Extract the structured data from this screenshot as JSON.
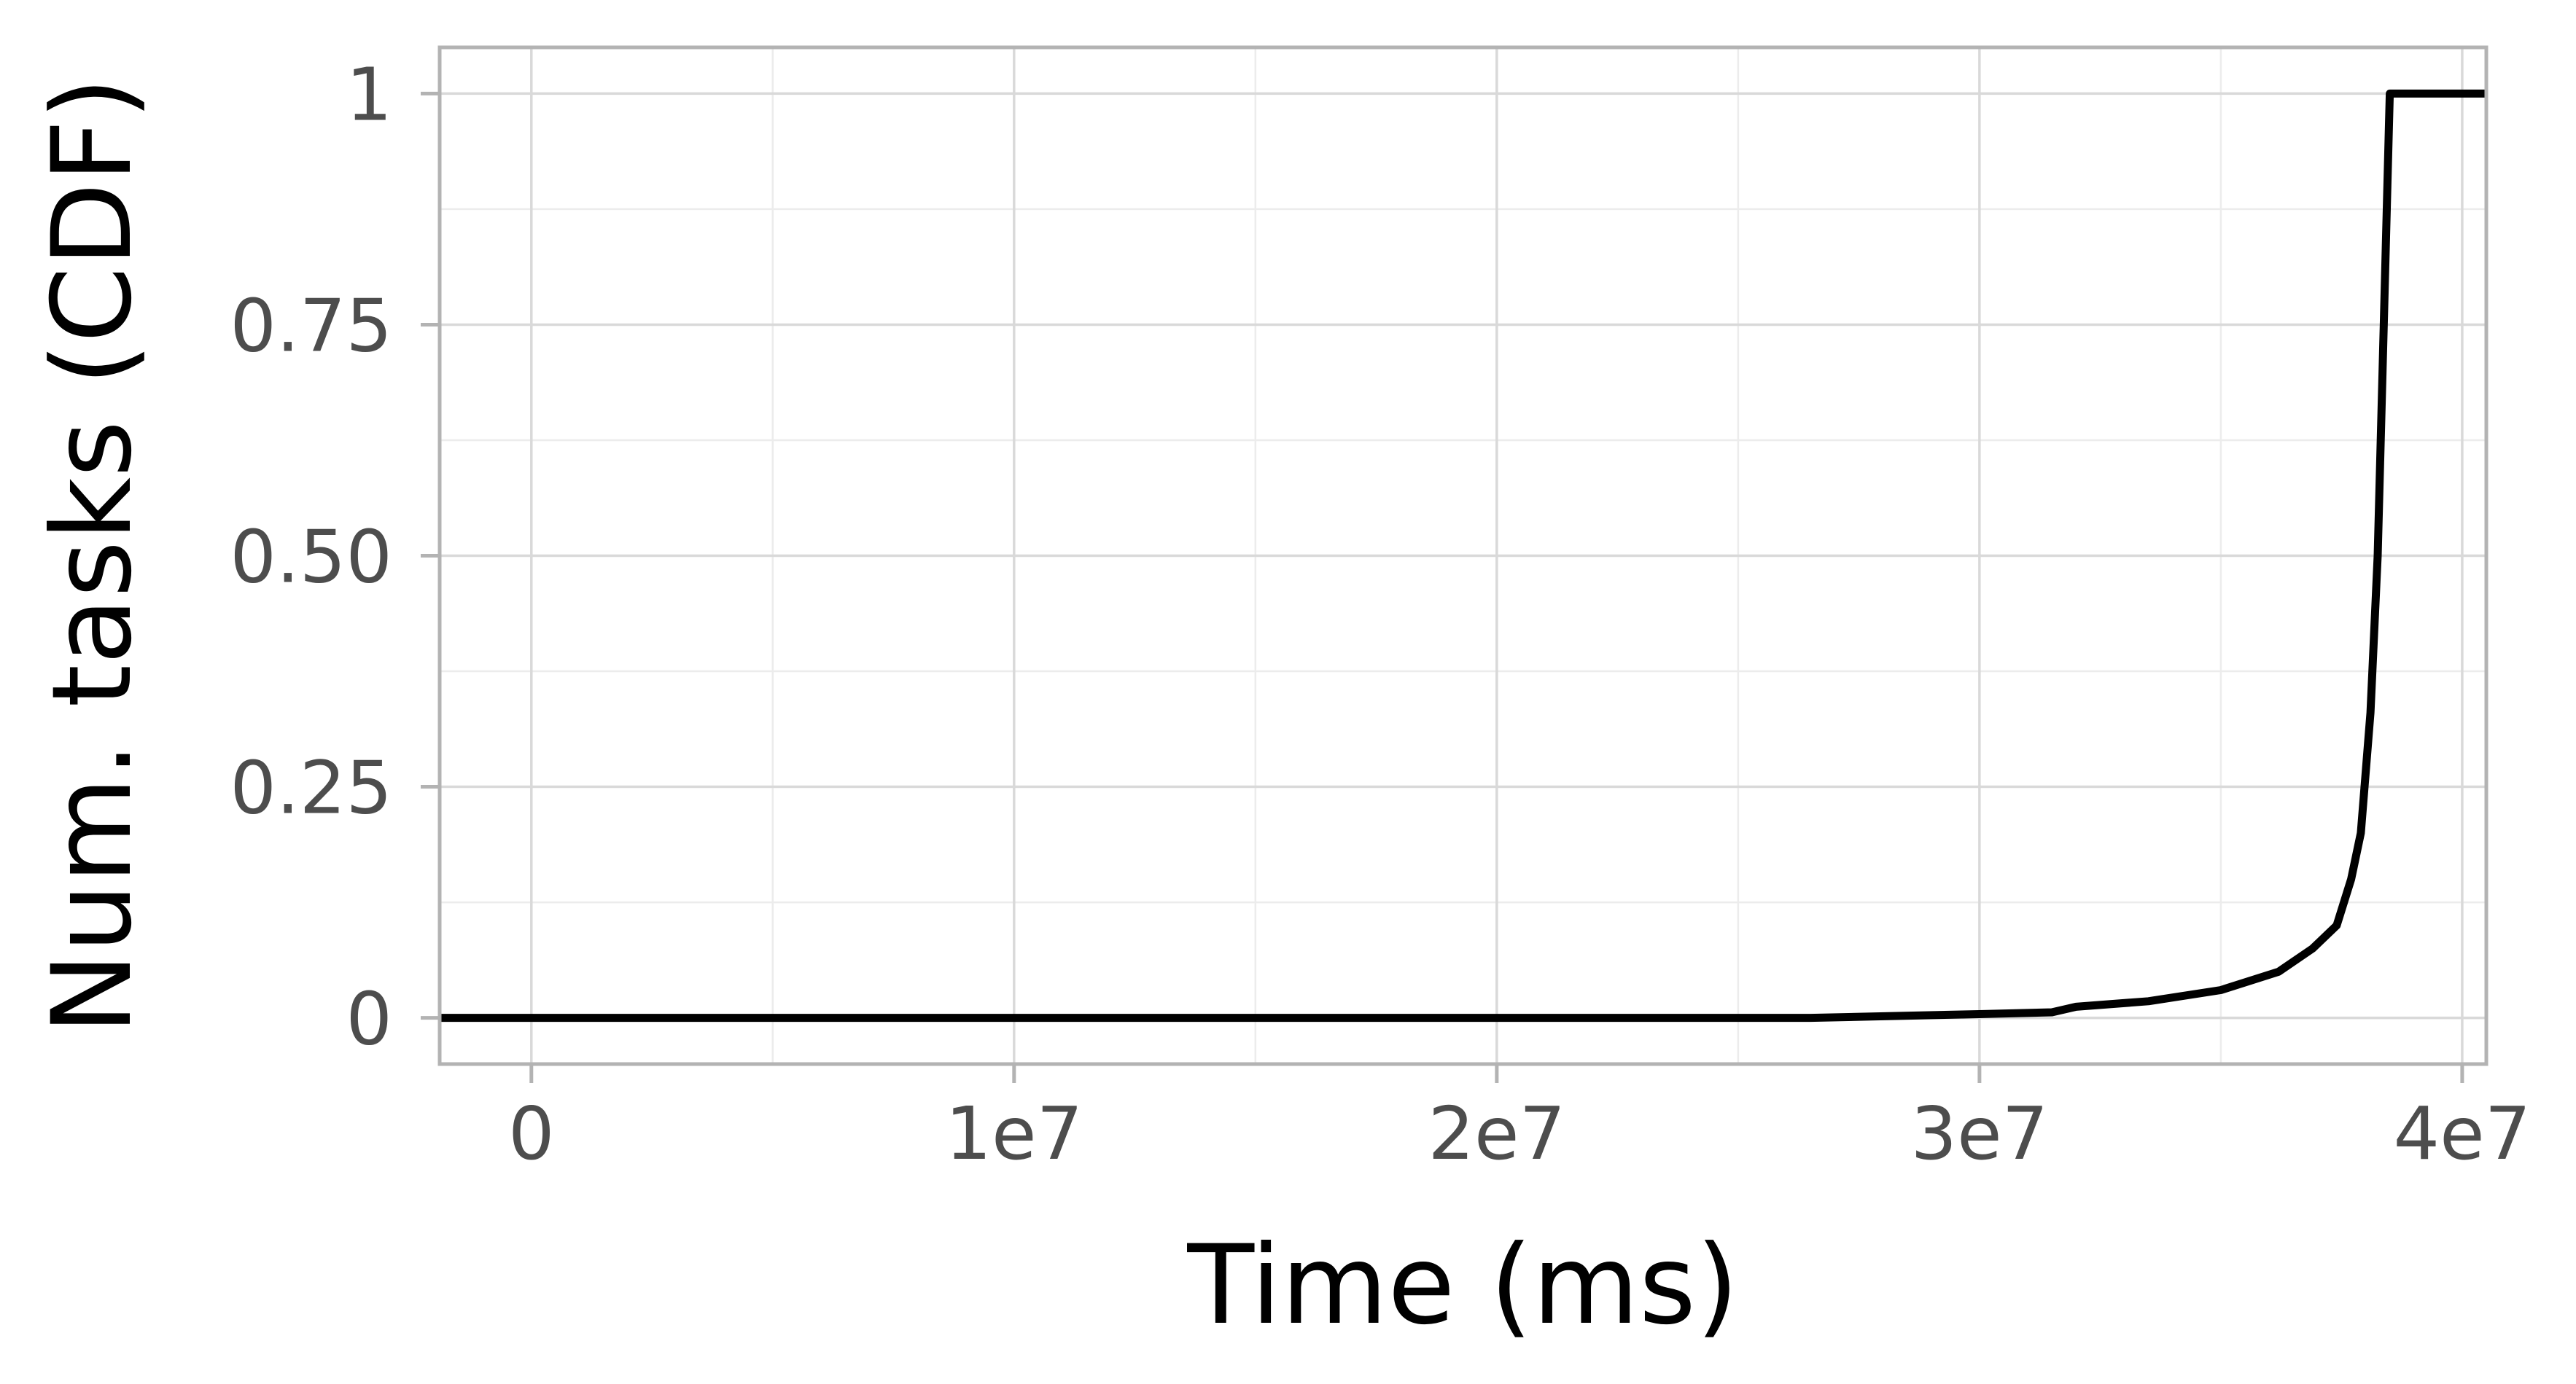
{
  "chart_data": {
    "type": "line",
    "title": "",
    "xlabel": "Time (ms)",
    "ylabel": "Num. tasks (CDF)",
    "xlim": [
      -1900000,
      40500000
    ],
    "ylim": [
      -0.05,
      1.05
    ],
    "x_ticks": [
      {
        "value": 0,
        "label": "0"
      },
      {
        "value": 10000000,
        "label": "1e7"
      },
      {
        "value": 20000000,
        "label": "2e7"
      },
      {
        "value": 30000000,
        "label": "3e7"
      },
      {
        "value": 40000000,
        "label": "4e7"
      }
    ],
    "y_ticks": [
      {
        "value": 0,
        "label": "0"
      },
      {
        "value": 0.25,
        "label": "0.25"
      },
      {
        "value": 0.5,
        "label": "0.50"
      },
      {
        "value": 0.75,
        "label": "0.75"
      },
      {
        "value": 1,
        "label": "1"
      }
    ],
    "grid": true,
    "legend": "none",
    "colors": {
      "line": "#000000",
      "grid_major": "#d9d9d9",
      "grid_minor": "#ececec",
      "panel_border": "#b3b3b3",
      "tick_label": "#4d4d4d"
    },
    "series": [
      {
        "values_xy": [
          [
            -1900000,
            0.0
          ],
          [
            26500000,
            0.0
          ],
          [
            30000000,
            0.004
          ],
          [
            31500000,
            0.006
          ],
          [
            32000000,
            0.012
          ],
          [
            33500000,
            0.018
          ],
          [
            35000000,
            0.03
          ],
          [
            36200000,
            0.05
          ],
          [
            36900000,
            0.075
          ],
          [
            37400000,
            0.1
          ],
          [
            37700000,
            0.15
          ],
          [
            37900000,
            0.2
          ],
          [
            38100000,
            0.33
          ],
          [
            38250000,
            0.5
          ],
          [
            38350000,
            0.7
          ],
          [
            38450000,
            0.9
          ],
          [
            38500000,
            1.0
          ],
          [
            40500000,
            1.0
          ]
        ]
      }
    ]
  }
}
